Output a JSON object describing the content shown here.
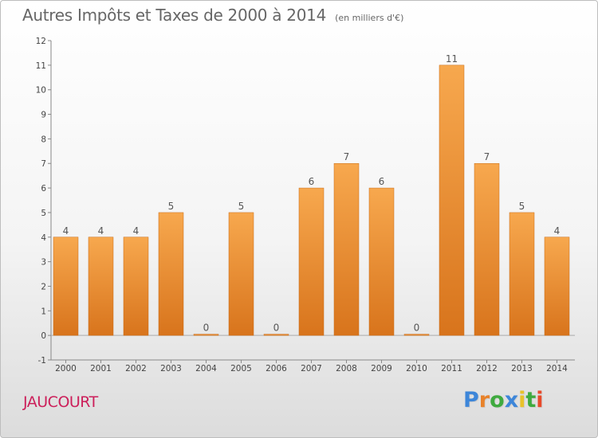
{
  "chart_data": {
    "type": "bar",
    "title": "Autres Impôts et Taxes de 2000 à 2014",
    "unit": "(en milliers d'€)",
    "categories": [
      "2000",
      "2001",
      "2002",
      "2003",
      "2004",
      "2005",
      "2006",
      "2007",
      "2008",
      "2009",
      "2010",
      "2011",
      "2012",
      "2013",
      "2014"
    ],
    "values": [
      4,
      4,
      4,
      5,
      0,
      5,
      0,
      6,
      7,
      6,
      0,
      11,
      7,
      5,
      4
    ],
    "yticks": [
      "-1",
      "0",
      "1",
      "2",
      "3",
      "4",
      "5",
      "6",
      "7",
      "8",
      "9",
      "10",
      "11",
      "12"
    ],
    "ylim": [
      -1,
      12
    ],
    "grid": false,
    "bar_color_top": "#f7a84e",
    "bar_color_bottom": "#d8741c"
  },
  "commune": "JAUCOURT",
  "brand": {
    "letters": [
      "P",
      "r",
      "o",
      "x",
      "i",
      "t",
      "i"
    ],
    "colors": [
      "#3d86d9",
      "#e8822a",
      "#3faa3f",
      "#3d86d9",
      "#e8c22a",
      "#3faa3f",
      "#e84a2a"
    ]
  }
}
